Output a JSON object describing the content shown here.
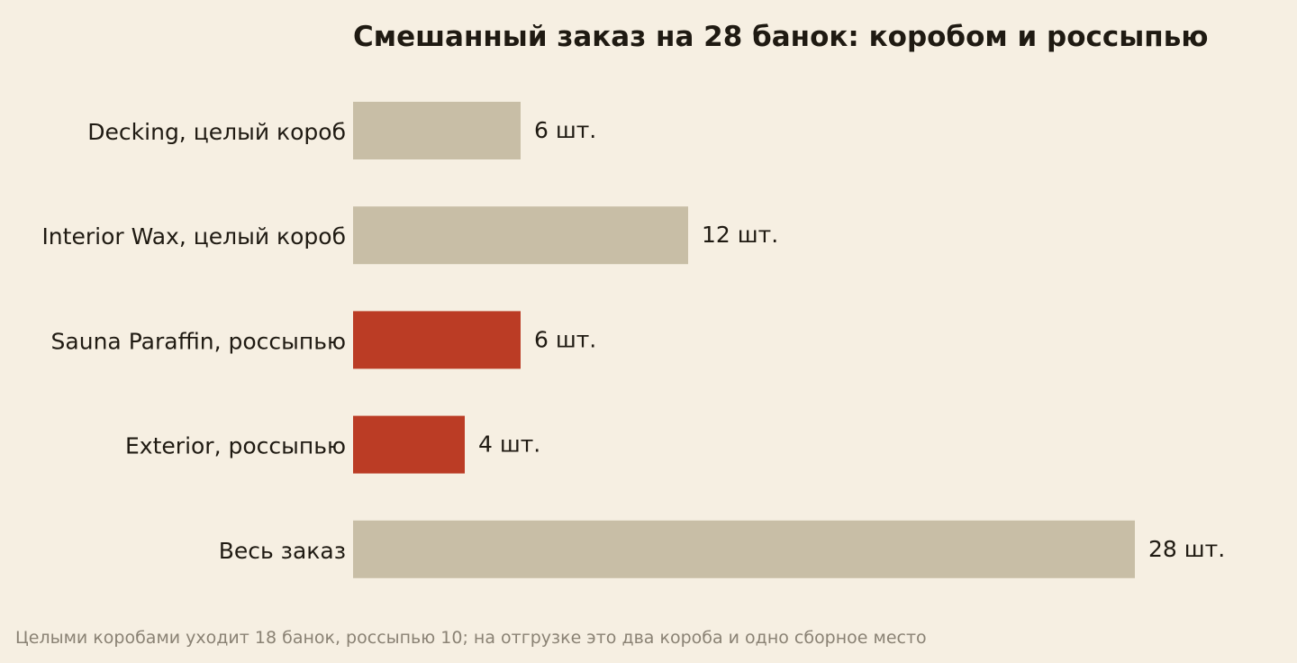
{
  "chart_data": {
    "type": "bar",
    "orientation": "horizontal",
    "title": "Смешанный заказ на 28 банок: коробом и россыпью",
    "categories": [
      "Decking, целый короб",
      "Interior Wax, целый короб",
      "Sauna Paraffin, россыпью",
      "Exterior, россыпью",
      "Весь заказ"
    ],
    "values": [
      6,
      12,
      6,
      4,
      28
    ],
    "value_labels": [
      "6 шт.",
      "12 шт.",
      "6 шт.",
      "4 шт.",
      "28 шт."
    ],
    "bar_colors": [
      "#c8bea6",
      "#c8bea6",
      "#bb3c25",
      "#bb3c25",
      "#c8bea6"
    ],
    "xlim": [
      0,
      28
    ],
    "grid": false,
    "legend": false,
    "footnote": "Целыми коробами уходит 18 банок, россыпью 10; на отгрузке это два короба и одно сборное место"
  }
}
